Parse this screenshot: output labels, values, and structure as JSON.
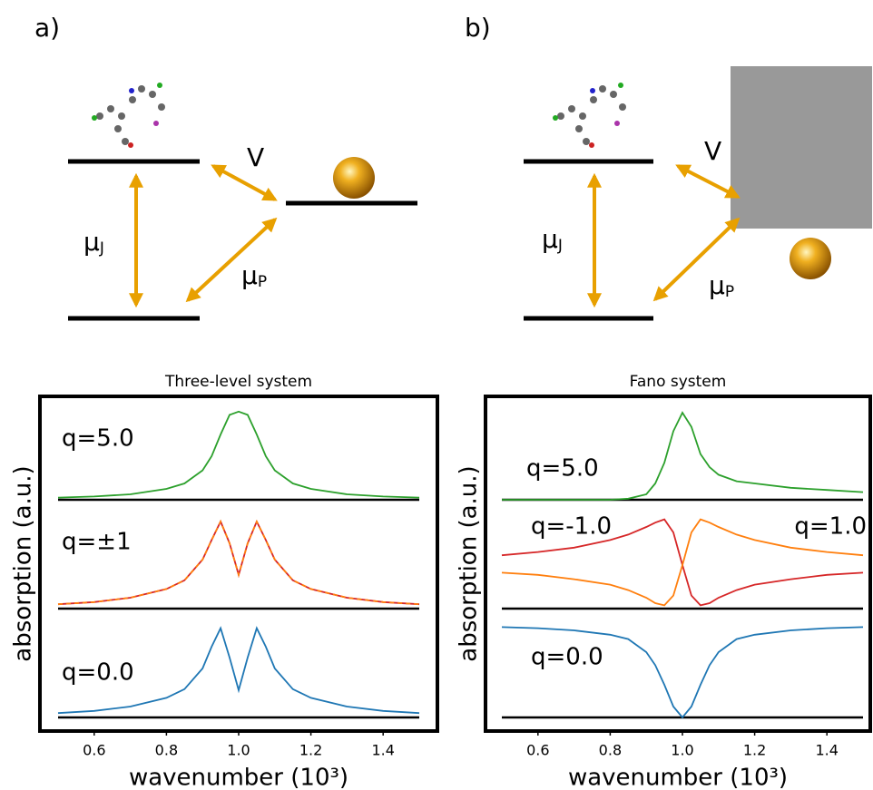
{
  "diagrams": [
    {
      "label": "a)",
      "coupling": "V",
      "mu_j": {
        "symbol": "μ",
        "subscript": "J"
      },
      "mu_p": {
        "symbol": "μ",
        "subscript": "P"
      }
    },
    {
      "label": "b)",
      "coupling": "V",
      "mu_j": {
        "symbol": "μ",
        "subscript": "J"
      },
      "mu_p": {
        "symbol": "μ",
        "subscript": "P"
      }
    }
  ],
  "chart_data": [
    {
      "type": "line",
      "title": "Three-level system",
      "xlabel": "wavenumber (10³)",
      "ylabel": "absorption (a.u.)",
      "xlim": [
        0.5,
        1.5
      ],
      "xticks": [
        0.6,
        0.8,
        {
          "value": 1,
          "label": "1.0"
        },
        1.2,
        1.4
      ],
      "ylim": [
        0,
        1
      ],
      "x": [
        0.5,
        0.6,
        0.7,
        0.8,
        0.85,
        0.9,
        0.925,
        0.95,
        0.975,
        1.0,
        1.025,
        1.05,
        1.075,
        1.1,
        1.15,
        1.2,
        1.3,
        1.4,
        1.5
      ],
      "rows": [
        {
          "series": [
            {
              "name": "q=5.0",
              "color": "#2ca02c",
              "values": [
                0.02,
                0.03,
                0.05,
                0.1,
                0.15,
                0.27,
                0.4,
                0.6,
                0.78,
                0.81,
                0.78,
                0.6,
                0.4,
                0.27,
                0.15,
                0.1,
                0.05,
                0.03,
                0.02
              ]
            }
          ]
        },
        {
          "series": [
            {
              "name": "q=±1",
              "color": "#d62728",
              "values": [
                0.04,
                0.06,
                0.1,
                0.18,
                0.26,
                0.45,
                0.63,
                0.8,
                0.6,
                0.31,
                0.6,
                0.8,
                0.63,
                0.45,
                0.26,
                0.18,
                0.1,
                0.06,
                0.04
              ]
            },
            {
              "color": "#ff7f0e",
              "dashed": true,
              "values": [
                0.04,
                0.06,
                0.1,
                0.18,
                0.26,
                0.45,
                0.63,
                0.8,
                0.6,
                0.31,
                0.6,
                0.8,
                0.63,
                0.45,
                0.26,
                0.18,
                0.1,
                0.06,
                0.04
              ]
            }
          ]
        },
        {
          "series": [
            {
              "name": "q=0.0",
              "color": "#1f77b4",
              "values": [
                0.04,
                0.06,
                0.1,
                0.18,
                0.26,
                0.45,
                0.65,
                0.82,
                0.55,
                0.25,
                0.55,
                0.82,
                0.65,
                0.45,
                0.26,
                0.18,
                0.1,
                0.06,
                0.04
              ]
            }
          ]
        }
      ]
    },
    {
      "type": "line",
      "title": "Fano system",
      "xlabel": "wavenumber (10³)",
      "ylabel": "absorption (a.u.)",
      "xlim": [
        0.5,
        1.5
      ],
      "xticks": [
        0.6,
        0.8,
        {
          "value": 1,
          "label": "1.0"
        },
        1.2,
        1.4
      ],
      "ylim": [
        0,
        1
      ],
      "x": [
        0.5,
        0.6,
        0.7,
        0.8,
        0.85,
        0.9,
        0.925,
        0.95,
        0.975,
        1.0,
        1.025,
        1.05,
        1.075,
        1.1,
        1.15,
        1.2,
        1.3,
        1.4,
        1.5
      ],
      "rows": [
        {
          "series": [
            {
              "name": "q=5.0",
              "color": "#2ca02c",
              "values": [
                0,
                0,
                0,
                0,
                0.01,
                0.05,
                0.15,
                0.34,
                0.63,
                0.8,
                0.67,
                0.42,
                0.3,
                0.23,
                0.17,
                0.15,
                0.11,
                0.09,
                0.07
              ]
            }
          ]
        },
        {
          "series": [
            {
              "name": "q=-1.0",
              "color": "#d62728",
              "values": [
                0.49,
                0.52,
                0.56,
                0.63,
                0.68,
                0.75,
                0.79,
                0.82,
                0.7,
                0.4,
                0.12,
                0.03,
                0.05,
                0.1,
                0.17,
                0.22,
                0.27,
                0.31,
                0.33
              ]
            },
            {
              "name": "q=1.0",
              "color": "#ff7f0e",
              "values": [
                0.33,
                0.31,
                0.27,
                0.22,
                0.17,
                0.1,
                0.05,
                0.03,
                0.12,
                0.4,
                0.7,
                0.82,
                0.79,
                0.75,
                0.68,
                0.63,
                0.56,
                0.52,
                0.49
              ]
            }
          ]
        },
        {
          "series": [
            {
              "name": "q=0.0",
              "color": "#1f77b4",
              "values": [
                0.83,
                0.82,
                0.8,
                0.76,
                0.72,
                0.6,
                0.48,
                0.3,
                0.1,
                0,
                0.1,
                0.3,
                0.48,
                0.6,
                0.72,
                0.76,
                0.8,
                0.82,
                0.83
              ]
            }
          ]
        }
      ]
    }
  ]
}
